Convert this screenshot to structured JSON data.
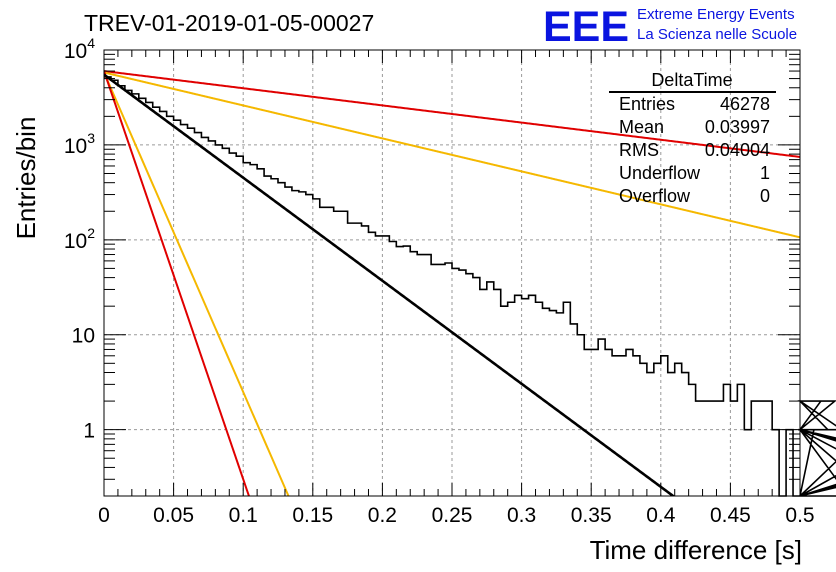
{
  "chart_data": {
    "type": "histogram",
    "title": "TREV-01-2019-01-05-00027",
    "xlabel": "Time difference [s]",
    "ylabel": "Entries/bin",
    "xlim": [
      0,
      0.5
    ],
    "ylim": [
      0.2,
      10000
    ],
    "yscale": "log",
    "grid": true,
    "x_ticks": [
      "0",
      "0.05",
      "0.1",
      "0.15",
      "0.2",
      "0.25",
      "0.3",
      "0.35",
      "0.4",
      "0.45",
      "0.5"
    ],
    "y_ticks": [
      {
        "value": 1,
        "label": "1"
      },
      {
        "value": 10,
        "label": "10"
      },
      {
        "value": 100,
        "label": "10^2"
      },
      {
        "value": 1000,
        "label": "10^3"
      },
      {
        "value": 10000,
        "label": "10^4"
      }
    ],
    "histogram": {
      "bin_width": 0.005,
      "values": [
        5200,
        4800,
        4200,
        3750,
        3450,
        3100,
        2800,
        2500,
        2250,
        2000,
        1820,
        1640,
        1500,
        1350,
        1200,
        1100,
        1000,
        920,
        820,
        760,
        650,
        620,
        560,
        470,
        440,
        400,
        360,
        330,
        320,
        300,
        270,
        220,
        220,
        200,
        200,
        150,
        150,
        140,
        120,
        110,
        110,
        96,
        85,
        86,
        75,
        70,
        70,
        55,
        55,
        57,
        50,
        48,
        44,
        40,
        30,
        36,
        30,
        20,
        22,
        26,
        24,
        26,
        22,
        19,
        18,
        17,
        22,
        13,
        10,
        7,
        7,
        9,
        7,
        6,
        6,
        7,
        6,
        5,
        4,
        5,
        6,
        4,
        5,
        4,
        3,
        2,
        2,
        2,
        2,
        3,
        2,
        3,
        1,
        2,
        2,
        2,
        1,
        0,
        1,
        0,
        0,
        0,
        1,
        2,
        1,
        2,
        1,
        0,
        0,
        0,
        1,
        0,
        0,
        0,
        0,
        0,
        0,
        1,
        0,
        0,
        0,
        0,
        0,
        0,
        0,
        0,
        0,
        0,
        0,
        0,
        1,
        0,
        0,
        0,
        1,
        0,
        0,
        0,
        1,
        0,
        1,
        0,
        0,
        0,
        0,
        0,
        0,
        0,
        0,
        0,
        0,
        0,
        0,
        0
      ]
    },
    "series": [
      {
        "color": "#000000",
        "function": "exp",
        "A": 5500,
        "tau": 0.04
      },
      {
        "color": "#e00000",
        "function": "exp",
        "A": 6000,
        "tau": 0.24
      },
      {
        "color": "#f5b800",
        "function": "exp",
        "A": 5800,
        "tau": 0.125
      },
      {
        "color": "#f5b800",
        "function": "exp",
        "A": 5800,
        "tau": 0.0129
      },
      {
        "color": "#e00000",
        "function": "exp",
        "A": 6000,
        "tau": 0.0101
      }
    ],
    "stats": {
      "title": "DeltaTime",
      "rows": [
        {
          "label": "Entries",
          "value": "46278"
        },
        {
          "label": "Mean",
          "value": "0.03997"
        },
        {
          "label": "RMS",
          "value": "0.04004"
        },
        {
          "label": "Underflow",
          "value": "1"
        },
        {
          "label": "Overflow",
          "value": "0"
        }
      ]
    }
  },
  "logo": {
    "text": "EEE",
    "line1": "Extreme Energy Events",
    "line2": "La Scienza nelle Scuole",
    "color": "#0a14e0"
  }
}
